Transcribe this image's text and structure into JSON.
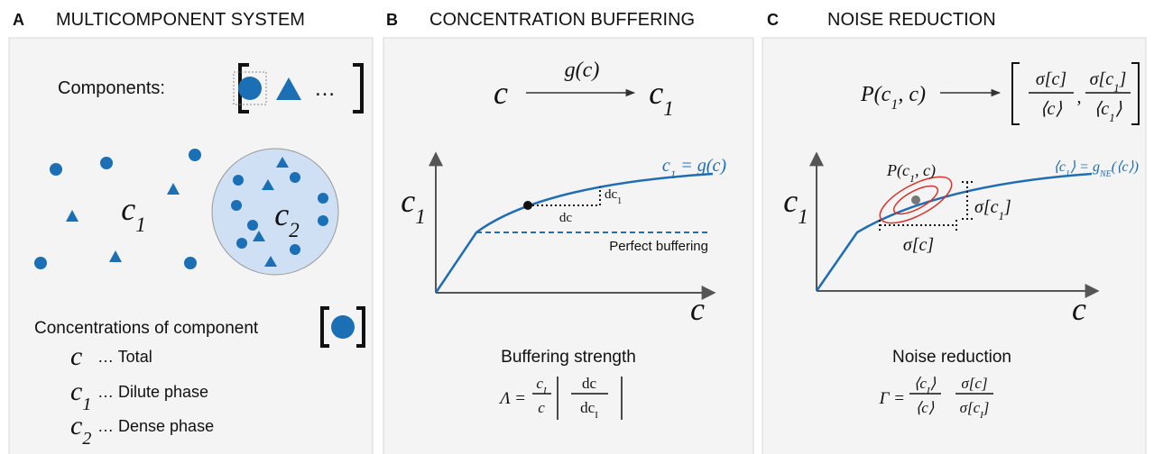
{
  "panels": [
    {
      "letter": "A",
      "title": "MULTICOMPONENT SYSTEM",
      "components_label": "Components:",
      "more": "…",
      "dilute": [
        "c",
        "1"
      ],
      "dense": [
        "c",
        "2"
      ],
      "concentrations_label": "Concentrations of component",
      "legend": [
        {
          "symbol": [
            "c"
          ],
          "text": "… Total"
        },
        {
          "symbol": [
            "c",
            "1"
          ],
          "text": "… Dilute phase"
        },
        {
          "symbol": [
            "c",
            "2"
          ],
          "text": "… Dense phase"
        }
      ]
    },
    {
      "letter": "B",
      "title": "CONCENTRATION BUFFERING",
      "map_from": [
        "c"
      ],
      "map_label": "g(c)",
      "map_to": [
        "c",
        "1"
      ],
      "curve_label": [
        "c",
        "1",
        " = g(c)"
      ],
      "dc1": [
        "dc",
        "1"
      ],
      "dc": "dc",
      "reference": "Perfect buffering",
      "y_axis": [
        "c",
        "1"
      ],
      "x_axis": "c",
      "measure": "Buffering strength",
      "formula": {
        "lhs": "Λ =",
        "num": [
          "c",
          "I"
        ],
        "den": "c",
        "dnum": "dc",
        "dden": [
          "dc",
          "I"
        ]
      }
    },
    {
      "letter": "C",
      "title": "NOISE REDUCTION",
      "map_from": [
        "P(c",
        "1",
        ", c)"
      ],
      "vector": [
        {
          "num": "σ[c]",
          "den": "⟨c⟩"
        },
        {
          "num": [
            "σ[c",
            "1",
            "]"
          ],
          "den": [
            "⟨c",
            "1",
            "⟩"
          ]
        }
      ],
      "vector_separator": ",",
      "curve_label": [
        "⟨c",
        "1",
        "⟩ = g",
        "NE",
        "(⟨c⟩)"
      ],
      "ellipse_label": [
        "P(c",
        "1",
        ", c)"
      ],
      "sigma_y": [
        "σ[c",
        "1",
        "]"
      ],
      "sigma_x": "σ[c]",
      "y_axis": [
        "c",
        "1"
      ],
      "x_axis": "c",
      "measure": "Noise reduction",
      "formula": {
        "lhs": "Γ =",
        "num1": [
          "⟨c",
          "I",
          "⟩"
        ],
        "den1": "⟨c⟩",
        "num2": "σ[c]",
        "den2": [
          "σ[c",
          "I",
          "]"
        ]
      }
    }
  ]
}
